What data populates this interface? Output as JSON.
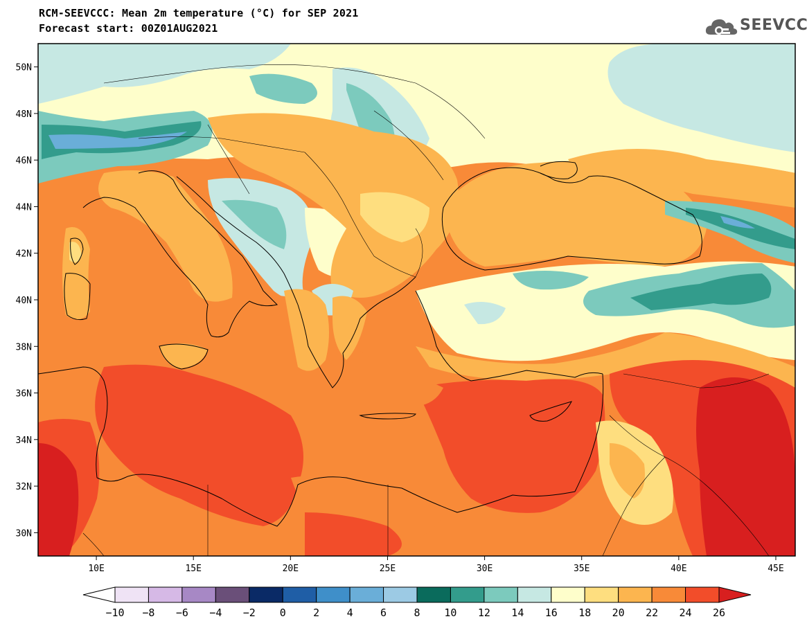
{
  "title": {
    "line1": "RCM-SEEVCCC: Mean 2m temperature (°C) for SEP 2021",
    "line2": "Forecast start: 00Z01AUG2021"
  },
  "logo": {
    "text": "SEEVCCC",
    "icon": "cloud-icon"
  },
  "map": {
    "lon_range": [
      7,
      46
    ],
    "lat_range": [
      29,
      51
    ],
    "lat_ticks": [
      "50N",
      "48N",
      "46N",
      "44N",
      "42N",
      "40N",
      "38N",
      "36N",
      "34N",
      "32N",
      "30N"
    ],
    "lon_ticks": [
      "10E",
      "15E",
      "20E",
      "25E",
      "30E",
      "35E",
      "40E",
      "45E"
    ]
  },
  "colorbar": {
    "unit": "°C",
    "labels": [
      "−10",
      "−8",
      "−6",
      "−4",
      "−2",
      "0",
      "2",
      "4",
      "6",
      "8",
      "10",
      "12",
      "14",
      "16",
      "18",
      "20",
      "22",
      "24",
      "26"
    ],
    "colors": [
      "#ffffff",
      "#efe3f5",
      "#d6b9e6",
      "#a788c5",
      "#6a4f79",
      "#0a2a66",
      "#1f5ea6",
      "#3f8fc9",
      "#6aaed8",
      "#9ccae4",
      "#0a6b5c",
      "#339c8c",
      "#7ccabd",
      "#c6e8e3",
      "#fefecb",
      "#fede7f",
      "#fcb54f",
      "#f88a38",
      "#f24d2a",
      "#d81f1f"
    ]
  }
}
